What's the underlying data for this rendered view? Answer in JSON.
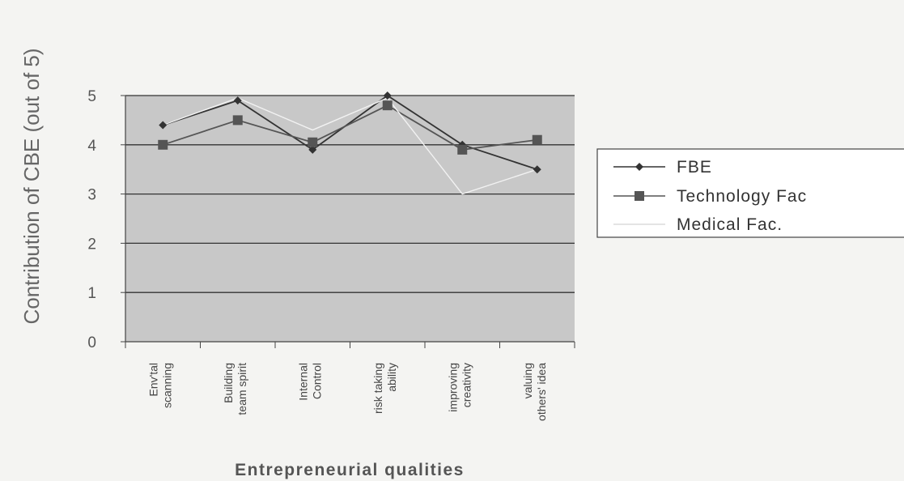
{
  "chart_data": {
    "type": "line",
    "xlabel": "Entrepreneurial qualities",
    "ylabel": "Contribution of CBE (out of 5)",
    "ylim": [
      0,
      5
    ],
    "yticks": [
      "0",
      "1",
      "2",
      "3",
      "4",
      "5"
    ],
    "grid": true,
    "legend_position": "right",
    "categories": [
      [
        "Env'tal",
        "scanning"
      ],
      [
        "Building",
        "team spirit"
      ],
      [
        "Internal",
        "Control"
      ],
      [
        "risk taking",
        "ability"
      ],
      [
        "improving",
        "creativity"
      ],
      [
        "valuing",
        "others' idea"
      ]
    ],
    "series": [
      {
        "name": "FBE",
        "values": [
          4.4,
          4.9,
          3.9,
          5.0,
          4.0,
          3.5
        ],
        "color": "#333333",
        "marker": "diamond"
      },
      {
        "name": "Technology Fac",
        "values": [
          4.0,
          4.5,
          4.05,
          4.8,
          3.9,
          4.1
        ],
        "color": "#555555",
        "marker": "square"
      },
      {
        "name": "Medical Fac.",
        "values": [
          4.4,
          4.95,
          4.3,
          4.95,
          3.0,
          3.5
        ],
        "color": "#f2f2f2",
        "marker": "none"
      }
    ]
  }
}
